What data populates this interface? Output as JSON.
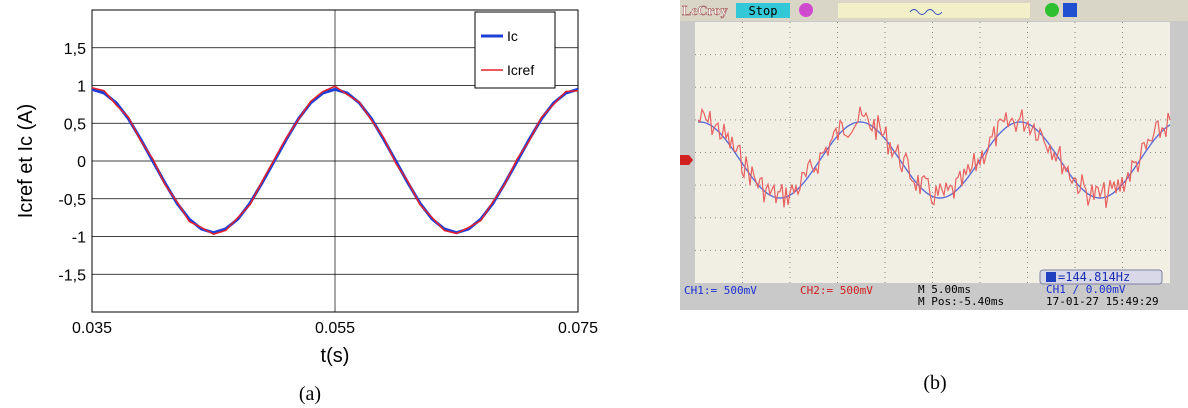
{
  "chart_data": {
    "type": "line",
    "ylabel": "Icref   et   Ic (A)",
    "xlabel": "t(s)",
    "x": [
      0.035,
      0.036,
      0.037,
      0.038,
      0.039,
      0.04,
      0.041,
      0.042,
      0.043,
      0.044,
      0.045,
      0.046,
      0.047,
      0.048,
      0.049,
      0.05,
      0.051,
      0.052,
      0.053,
      0.054,
      0.055,
      0.056,
      0.057,
      0.058,
      0.059,
      0.06,
      0.061,
      0.062,
      0.063,
      0.064,
      0.065,
      0.066,
      0.067,
      0.068,
      0.069,
      0.07,
      0.071,
      0.072,
      0.073,
      0.074,
      0.075
    ],
    "series": [
      {
        "name": "Ic",
        "color": "#1f3fd6",
        "width": 3,
        "values": [
          0.95,
          0.9,
          0.77,
          0.56,
          0.29,
          0,
          -0.29,
          -0.56,
          -0.77,
          -0.9,
          -0.95,
          -0.9,
          -0.77,
          -0.56,
          -0.29,
          0,
          0.29,
          0.56,
          0.77,
          0.9,
          0.95,
          0.9,
          0.77,
          0.56,
          0.29,
          0,
          -0.29,
          -0.56,
          -0.77,
          -0.9,
          -0.95,
          -0.9,
          -0.77,
          -0.56,
          -0.29,
          0,
          0.29,
          0.56,
          0.77,
          0.9,
          0.95
        ]
      },
      {
        "name": "Icref",
        "color": "#e8202a",
        "width": 1.5,
        "values": [
          0.97,
          0.93,
          0.74,
          0.58,
          0.27,
          0.03,
          -0.31,
          -0.54,
          -0.8,
          -0.88,
          -0.97,
          -0.92,
          -0.75,
          -0.58,
          -0.27,
          0.02,
          0.31,
          0.55,
          0.79,
          0.92,
          0.99,
          0.88,
          0.78,
          0.54,
          0.31,
          -0.03,
          -0.27,
          -0.58,
          -0.75,
          -0.92,
          -0.96,
          -0.88,
          -0.79,
          -0.54,
          -0.3,
          0.03,
          0.27,
          0.58,
          0.75,
          0.92,
          0.93
        ]
      }
    ],
    "xlim": [
      0.035,
      0.075
    ],
    "xticks": [
      0.035,
      0.055,
      0.075
    ],
    "ylim": [
      -2,
      2
    ],
    "yticks": [
      {
        "value": -1.5,
        "label": "-1,5"
      },
      -1,
      {
        "value": -0.5,
        "label": "-0,5"
      },
      0,
      {
        "value": 0.5,
        "label": "0,5"
      },
      1,
      {
        "value": 1.5,
        "label": "1,5"
      }
    ],
    "grid": true,
    "legend": "upper right"
  },
  "scope": {
    "brand": "LeCroy",
    "status": "Stop",
    "ch1": "CH1:= 500mV",
    "ch2": "CH2:= 500mV",
    "timebase": "M 5.00ms",
    "position": "M Pos:-5.40ms",
    "trigger": "CH1 ∕ 0.00mV",
    "datetime": "17-01-27 15:49:29",
    "frequency": "=144.814Hz"
  },
  "captions": [
    "(a)",
    "(b)"
  ]
}
